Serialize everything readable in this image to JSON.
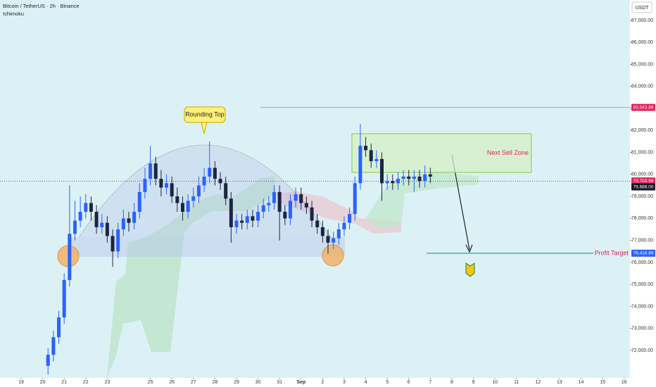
{
  "chart_data": {
    "type": "candlestick",
    "title": "Bitcoin / TetherUS · 2h · Binance",
    "indicator": "Ichimoku",
    "currency": "USDT",
    "x": [
      20.25,
      20.5,
      20.75,
      21,
      21.25,
      21.5,
      21.75,
      22,
      22.25,
      22.5,
      22.75,
      23,
      23.25,
      23.5,
      23.75,
      24,
      24.25,
      24.5,
      24.75,
      25,
      25.25,
      25.5,
      25.75,
      26,
      26.25,
      26.5,
      26.75,
      27,
      27.25,
      27.5,
      27.75,
      28,
      28.25,
      28.5,
      28.75,
      29,
      29.25,
      29.5,
      29.75,
      30,
      30.25,
      30.5,
      30.75,
      31,
      31.25,
      31.5,
      31.75,
      32,
      32.25,
      32.5,
      32.75,
      33,
      33.25,
      33.5,
      33.75,
      34,
      34.25,
      34.5,
      34.75,
      35,
      35.25,
      35.5,
      35.75,
      36,
      36.25,
      36.5,
      36.75,
      37,
      37.25,
      37.5,
      37.75,
      38
    ],
    "open": [
      71300,
      71800,
      72600,
      73500,
      75200,
      77300,
      77900,
      78300,
      78700,
      78300,
      77600,
      77800,
      77200,
      76500,
      77500,
      78000,
      77800,
      78300,
      79200,
      79800,
      80500,
      79800,
      79400,
      79600,
      79000,
      78700,
      78300,
      78800,
      79000,
      79500,
      79900,
      80300,
      79800,
      79600,
      78900,
      77600,
      77900,
      77800,
      78100,
      77900,
      78300,
      78600,
      78700,
      79200,
      78300,
      78000,
      78800,
      79100,
      78700,
      78500,
      77900,
      77600,
      77200,
      76900,
      77100,
      77500,
      77800,
      78200,
      79600,
      81300,
      81100,
      80600,
      80700,
      79600,
      79700,
      79600,
      79800,
      79900,
      79800,
      79900,
      79700,
      80000
    ],
    "high": [
      72100,
      72900,
      73800,
      75500,
      79500,
      78800,
      79000,
      79100,
      79000,
      78600,
      78200,
      78100,
      77500,
      77800,
      78400,
      78300,
      78700,
      79600,
      80300,
      81300,
      80800,
      80200,
      80000,
      79900,
      79400,
      79000,
      79100,
      79400,
      79900,
      80300,
      81500,
      80600,
      80100,
      79900,
      79200,
      78200,
      78200,
      78400,
      78400,
      78600,
      78900,
      79000,
      79500,
      79500,
      78600,
      79100,
      79400,
      79400,
      79000,
      78800,
      78200,
      77900,
      77500,
      77400,
      77800,
      78100,
      78500,
      79900,
      82300,
      81700,
      81400,
      81100,
      81000,
      80000,
      80000,
      80100,
      80200,
      80200,
      80200,
      80200,
      80400,
      80300
    ],
    "low": [
      70900,
      71500,
      72300,
      73200,
      74900,
      77000,
      77600,
      78000,
      77900,
      77300,
      77300,
      76900,
      75800,
      76200,
      77200,
      77400,
      77500,
      78000,
      78900,
      79500,
      79500,
      79000,
      79100,
      78700,
      78300,
      77900,
      78000,
      78500,
      78700,
      79200,
      79600,
      79500,
      79300,
      78600,
      76900,
      77300,
      77500,
      77500,
      77600,
      77600,
      78000,
      78300,
      78400,
      77000,
      77700,
      77700,
      78500,
      78400,
      78200,
      77600,
      77300,
      76900,
      76400,
      76600,
      76800,
      77200,
      77500,
      77900,
      79300,
      80800,
      80300,
      80300,
      78800,
      79300,
      79300,
      79300,
      79500,
      79500,
      79200,
      79400,
      79400,
      79600
    ],
    "close": [
      71800,
      72600,
      73500,
      75200,
      77300,
      77900,
      78300,
      78700,
      78300,
      77600,
      77800,
      77200,
      76500,
      77500,
      78000,
      77800,
      78300,
      79200,
      79800,
      80500,
      79800,
      79400,
      79600,
      79000,
      78700,
      78300,
      78800,
      79000,
      79500,
      79900,
      80300,
      79800,
      79600,
      78900,
      77600,
      77900,
      77800,
      78100,
      77900,
      78300,
      78600,
      78700,
      79200,
      78300,
      78000,
      78800,
      79100,
      78700,
      78500,
      77900,
      77600,
      77200,
      76900,
      77100,
      77500,
      77800,
      78200,
      79600,
      81300,
      81100,
      80600,
      80700,
      79600,
      79700,
      79600,
      79800,
      79900,
      79800,
      79900,
      79700,
      80000,
      79900
    ],
    "up_color": "#2962ff",
    "down_color": "#1c2540",
    "xlim": [
      18.02,
      47.27
    ],
    "xticks": [
      19,
      20,
      21,
      22,
      23,
      25,
      26,
      27,
      28,
      29,
      30,
      31,
      {
        "value": 32,
        "label": "Sep"
      },
      {
        "value": 33,
        "label": "2"
      },
      {
        "value": 34,
        "label": "3"
      },
      {
        "value": 35,
        "label": "4"
      },
      {
        "value": 36,
        "label": "5"
      },
      {
        "value": 37,
        "label": "6"
      },
      {
        "value": 38,
        "label": "7"
      },
      {
        "value": 39,
        "label": "8"
      },
      {
        "value": 40,
        "label": "9"
      },
      {
        "value": 41,
        "label": "10"
      },
      {
        "value": 42,
        "label": "11"
      },
      {
        "value": 43,
        "label": "12"
      },
      {
        "value": 44,
        "label": "13"
      },
      {
        "value": 45,
        "label": "14"
      },
      {
        "value": 46,
        "label": "15"
      },
      {
        "value": 47,
        "label": "16"
      }
    ],
    "ylim": [
      70753,
      87927
    ],
    "yticks": [
      {
        "value": 72000,
        "label": "72,000.00"
      },
      {
        "value": 73000,
        "label": "73,000.00"
      },
      {
        "value": 74000,
        "label": "74,000.00"
      },
      {
        "value": 75000,
        "label": "75,000.00"
      },
      {
        "value": 76000,
        "label": "76,000.00"
      },
      {
        "value": 77000,
        "label": "77,000.00"
      },
      {
        "value": 78000,
        "label": "78,000.00"
      },
      {
        "value": 79000,
        "label": "79,000.00"
      },
      {
        "value": 80000,
        "label": "80,000.00"
      },
      {
        "value": 81000,
        "label": "81,000.00"
      },
      {
        "value": 82000,
        "label": "82,000.00"
      },
      {
        "value": 83000,
        "label": "83,000.00"
      },
      {
        "value": 84000,
        "label": "84,000.00"
      },
      {
        "value": 85000,
        "label": "85,000.00"
      },
      {
        "value": 86000,
        "label": "86,000.00"
      },
      {
        "value": 87000,
        "label": "87,000.00"
      }
    ],
    "annotations": {
      "rounding_top": "Rounding Top",
      "sell_zone": {
        "label": "Next Sell Zone",
        "xlim": [
          34.36,
          42.69
        ],
        "ylim": [
          80090,
          81850
        ]
      },
      "profit_target": {
        "label": "Profit Target",
        "value": 76416.69,
        "tag": "76,416.69"
      },
      "resistance": {
        "value": 83043.89,
        "tag": "83,043.89"
      },
      "last_price": {
        "value": 79703.59,
        "tag": "79,703.59"
      },
      "close_price": {
        "value": 79688,
        "tag": "79,688.00"
      }
    }
  }
}
